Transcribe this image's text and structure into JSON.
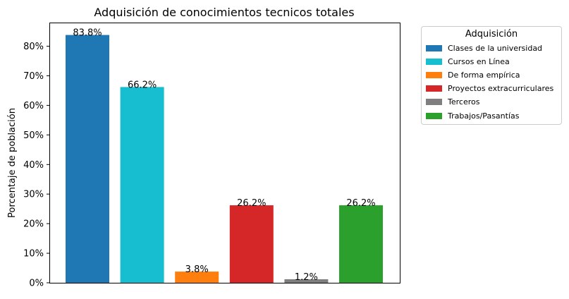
{
  "chart_data": {
    "type": "bar",
    "title": "Adquisición de conocimientos tecnicos totales",
    "xlabel": "",
    "ylabel": "Porcentaje de población",
    "ylim": [
      0,
      88
    ],
    "yticks": [
      0,
      10,
      20,
      30,
      40,
      50,
      60,
      70,
      80
    ],
    "ytick_labels": [
      "0%",
      "10%",
      "20%",
      "30%",
      "40%",
      "50%",
      "60%",
      "70%",
      "80%"
    ],
    "grid": false,
    "legend_title": "Adquisición",
    "legend_position": "outside-top-right",
    "categories": [
      "Clases de la universidad",
      "Cursos en Línea",
      "De forma empírica",
      "Proyectos extracurriculares",
      "Terceros",
      "Trabajos/Pasantías"
    ],
    "values": [
      83.8,
      66.2,
      3.8,
      26.2,
      1.2,
      26.2
    ],
    "value_labels": [
      "83.8%",
      "66.2%",
      "3.8%",
      "26.2%",
      "1.2%",
      "26.2%"
    ],
    "colors": [
      "#1f77b4",
      "#17becf",
      "#ff7f0e",
      "#d62728",
      "#7f7f7f",
      "#2ca02c"
    ]
  }
}
